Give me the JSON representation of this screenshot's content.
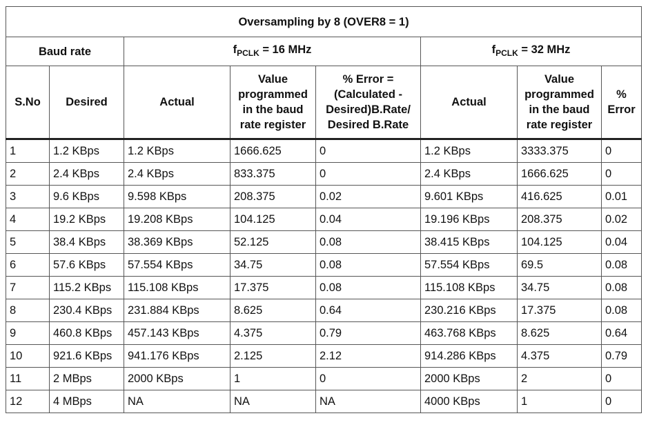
{
  "table": {
    "title": "Oversampling by 8 (OVER8 = 1)",
    "groups": {
      "baud_rate": "Baud rate",
      "pclk16": {
        "prefix": "f",
        "sub": "PCLK",
        "suffix": " = 16 MHz"
      },
      "pclk32": {
        "prefix": "f",
        "sub": "PCLK",
        "suffix": " = 32 MHz"
      }
    },
    "columns": [
      "S.No",
      "Desired",
      "Actual",
      "Value programmed in the baud rate register",
      "% Error = (Calculated - Desired)B.Rate/ Desired B.Rate",
      "Actual",
      "Value programmed in the baud rate register",
      "% Error"
    ],
    "rows": [
      [
        "1",
        "1.2 KBps",
        "1.2 KBps",
        "1666.625",
        "0",
        "1.2 KBps",
        "3333.375",
        "0"
      ],
      [
        "2",
        "2.4 KBps",
        "2.4 KBps",
        "833.375",
        "0",
        "2.4 KBps",
        "1666.625",
        "0"
      ],
      [
        "3",
        "9.6 KBps",
        "9.598 KBps",
        "208.375",
        "0.02",
        "9.601 KBps",
        "416.625",
        "0.01"
      ],
      [
        "4",
        "19.2 KBps",
        "19.208 KBps",
        "104.125",
        "0.04",
        "19.196 KBps",
        "208.375",
        "0.02"
      ],
      [
        "5",
        "38.4 KBps",
        "38.369 KBps",
        "52.125",
        "0.08",
        "38.415 KBps",
        "104.125",
        "0.04"
      ],
      [
        "6",
        "57.6 KBps",
        "57.554 KBps",
        "34.75",
        "0.08",
        "57.554 KBps",
        "69.5",
        "0.08"
      ],
      [
        "7",
        "115.2 KBps",
        "115.108 KBps",
        "17.375",
        "0.08",
        "115.108 KBps",
        "34.75",
        "0.08"
      ],
      [
        "8",
        "230.4 KBps",
        "231.884 KBps",
        "8.625",
        "0.64",
        "230.216 KBps",
        "17.375",
        "0.08"
      ],
      [
        "9",
        "460.8 KBps",
        "457.143 KBps",
        "4.375",
        "0.79",
        "463.768 KBps",
        "8.625",
        "0.64"
      ],
      [
        "10",
        "921.6 KBps",
        "941.176 KBps",
        "2.125",
        "2.12",
        "914.286 KBps",
        "4.375",
        "0.79"
      ],
      [
        "11",
        "2 MBps",
        "2000 KBps",
        "1",
        "0",
        "2000 KBps",
        "2",
        "0"
      ],
      [
        "12",
        "4 MBps",
        "NA",
        "NA",
        "NA",
        "4000 KBps",
        "1",
        "0"
      ]
    ]
  }
}
